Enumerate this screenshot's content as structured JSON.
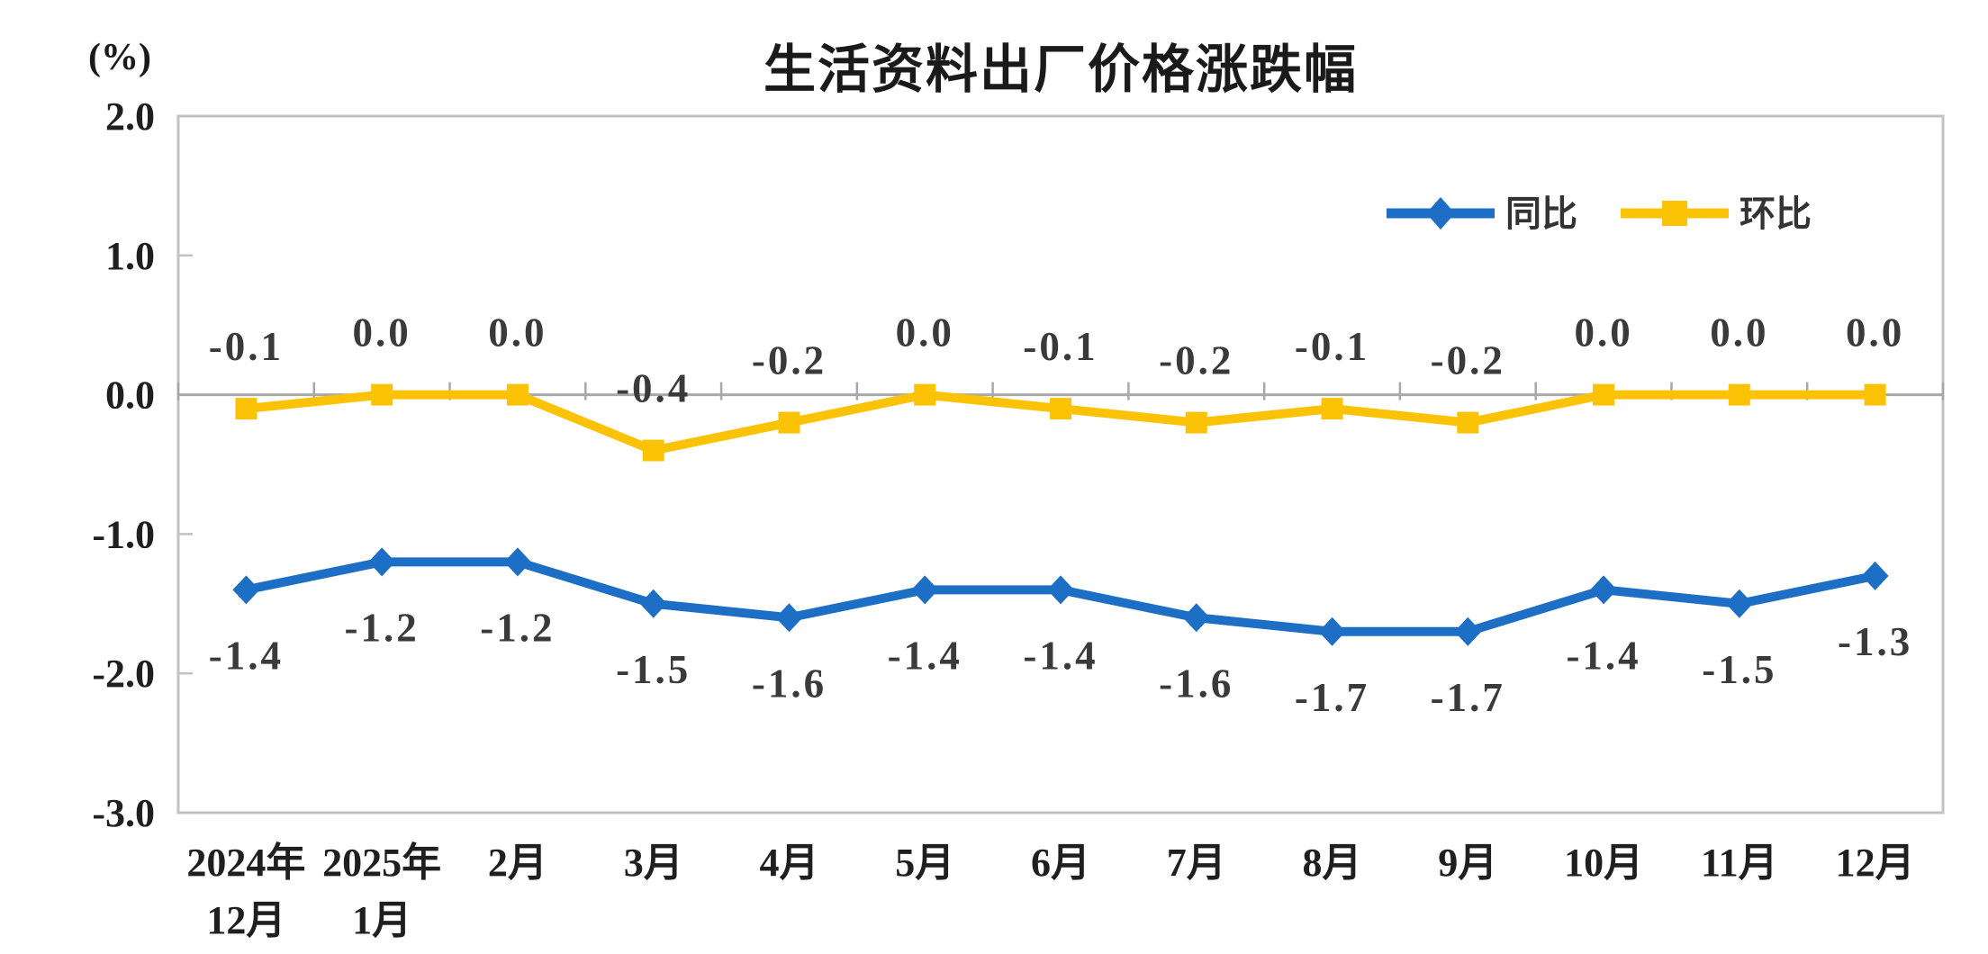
{
  "chart": {
    "title": "生活资料出厂价格涨跌幅",
    "unit_label": "(%)"
  },
  "chart_data": {
    "type": "line",
    "title": "生活资料出厂价格涨跌幅",
    "unit": "%",
    "categories": [
      "2024年\n12月",
      "2025年\n1月",
      "2月",
      "3月",
      "4月",
      "5月",
      "6月",
      "7月",
      "8月",
      "9月",
      "10月",
      "11月",
      "12月"
    ],
    "series": [
      {
        "name": "同比",
        "color": "#1c6fc4",
        "marker": "diamond",
        "label_position": "below",
        "values": [
          -1.4,
          -1.2,
          -1.2,
          -1.5,
          -1.6,
          -1.4,
          -1.4,
          -1.6,
          -1.7,
          -1.7,
          -1.4,
          -1.5,
          -1.3
        ]
      },
      {
        "name": "环比",
        "color": "#fcc306",
        "marker": "square",
        "label_position": "above",
        "values": [
          -0.1,
          0.0,
          0.0,
          -0.4,
          -0.2,
          0.0,
          -0.1,
          -0.2,
          -0.1,
          -0.2,
          0.0,
          0.0,
          0.0
        ]
      }
    ],
    "xlabel": "",
    "ylabel": "(%)",
    "ylim": [
      -3.0,
      2.0
    ],
    "y_ticks": [
      2.0,
      1.0,
      0.0,
      -1.0,
      -2.0,
      -3.0
    ],
    "grid": false,
    "legend_position": "top-right",
    "colors": {
      "frame": "#c2c2c2",
      "zero_line": "#a8a8a8",
      "tick": "#a8a8a8"
    }
  }
}
